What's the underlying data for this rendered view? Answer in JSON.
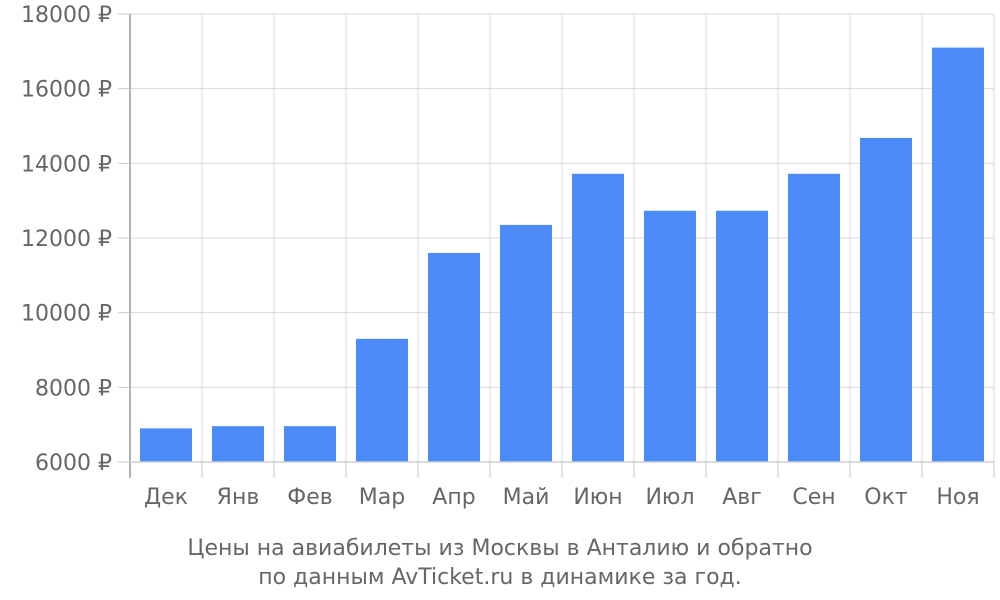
{
  "chart_data": {
    "type": "bar",
    "categories": [
      "Дек",
      "Янв",
      "Фев",
      "Мар",
      "Апр",
      "Май",
      "Июн",
      "Июл",
      "Авг",
      "Сен",
      "Окт",
      "Ноя"
    ],
    "values": [
      6900,
      6960,
      6960,
      9300,
      11600,
      12350,
      13720,
      12730,
      12730,
      13720,
      14680,
      17100
    ],
    "ylim": [
      6000,
      18000
    ],
    "yticks": [
      6000,
      8000,
      10000,
      12000,
      14000,
      16000,
      18000
    ],
    "ytick_labels": [
      "6000 ₽",
      "8000 ₽",
      "10000 ₽",
      "12000 ₽",
      "14000 ₽",
      "16000 ₽",
      "18000 ₽"
    ],
    "caption": [
      "Цены на авиабилеты из Москвы в Анталию и обратно",
      "по данным AvTicket.ru в динамике за год."
    ],
    "bar_color": "#4d8af9",
    "grid": true
  }
}
